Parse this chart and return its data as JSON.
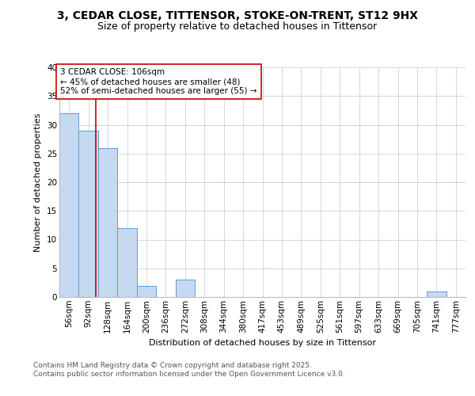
{
  "title": "3, CEDAR CLOSE, TITTENSOR, STOKE-ON-TRENT, ST12 9HX",
  "subtitle": "Size of property relative to detached houses in Tittensor",
  "xlabel": "Distribution of detached houses by size in Tittensor",
  "ylabel": "Number of detached properties",
  "categories": [
    "56sqm",
    "92sqm",
    "128sqm",
    "164sqm",
    "200sqm",
    "236sqm",
    "272sqm",
    "308sqm",
    "344sqm",
    "380sqm",
    "417sqm",
    "453sqm",
    "489sqm",
    "525sqm",
    "561sqm",
    "597sqm",
    "633sqm",
    "669sqm",
    "705sqm",
    "741sqm",
    "777sqm"
  ],
  "values": [
    32,
    29,
    26,
    12,
    2,
    0,
    3,
    0,
    0,
    0,
    0,
    0,
    0,
    0,
    0,
    0,
    0,
    0,
    0,
    1,
    0
  ],
  "bar_color": "#c6d9f0",
  "bar_edgecolor": "#5b9bd5",
  "vline_x": 1.39,
  "vline_color": "#cc0000",
  "ylim": [
    0,
    40
  ],
  "yticks": [
    0,
    5,
    10,
    15,
    20,
    25,
    30,
    35,
    40
  ],
  "annotation_text": "3 CEDAR CLOSE: 106sqm\n← 45% of detached houses are smaller (48)\n52% of semi-detached houses are larger (55) →",
  "footer_text": "Contains HM Land Registry data © Crown copyright and database right 2025.\nContains public sector information licensed under the Open Government Licence v3.0.",
  "background_color": "#ffffff",
  "grid_color": "#c0c8d8",
  "title_fontsize": 10,
  "subtitle_fontsize": 9,
  "axis_fontsize": 8,
  "tick_fontsize": 7.5,
  "annotation_fontsize": 7.5,
  "footer_fontsize": 6.5
}
